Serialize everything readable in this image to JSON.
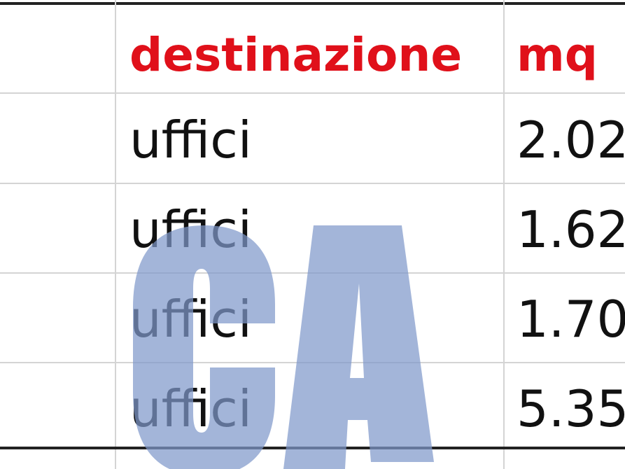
{
  "table": {
    "headers": [
      "destinazione",
      "mq"
    ],
    "rows": [
      {
        "destinazione": "uffici",
        "mq": "2.02"
      },
      {
        "destinazione": "uffici",
        "mq": "1.62"
      },
      {
        "destinazione": "uffici",
        "mq": "1.70"
      },
      {
        "destinazione": "uffici",
        "mq": "5.35"
      }
    ],
    "header_color": "#e0101a"
  },
  "watermark": {
    "text": "CA",
    "color": "#7f98cb"
  }
}
